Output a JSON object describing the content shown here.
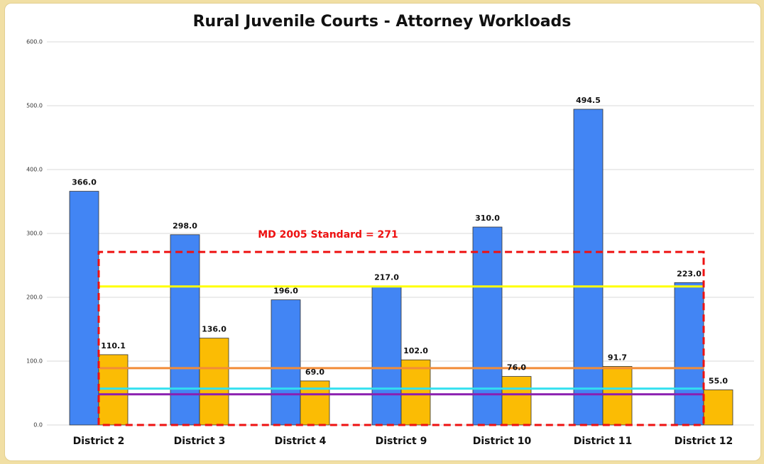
{
  "chart_data": {
    "type": "bar",
    "title": "Rural Juvenile Courts - Attorney Workloads",
    "categories": [
      "District 2",
      "District 3",
      "District 4",
      "District 9",
      "District 10",
      "District 11",
      "District 12"
    ],
    "series": [
      {
        "color": "#4285f4",
        "values": [
          366.0,
          298.0,
          196.0,
          217.0,
          310.0,
          494.5,
          223.0
        ],
        "value_labels": [
          "366.0",
          "298.0",
          "196.0",
          "217.0",
          "310.0",
          "494.5",
          "223.0"
        ]
      },
      {
        "color": "#fbbc04",
        "values": [
          110.1,
          136.0,
          69.0,
          102.0,
          76.0,
          91.7,
          55.0
        ],
        "value_labels": [
          "110.1",
          "136.0",
          "69.0",
          "102.0",
          "76.0",
          "91.7",
          "55.0"
        ]
      }
    ],
    "reference_lines": [
      {
        "value": 217,
        "color": "#ffff00"
      },
      {
        "value": 89,
        "color": "#f28c38"
      },
      {
        "value": 57,
        "color": "#33e0f0"
      },
      {
        "value": 48,
        "color": "#8a1fb0"
      }
    ],
    "standard": {
      "value": 271,
      "color": "#ee1111",
      "label": "MD 2005 Standard = 271"
    },
    "ylim": [
      0,
      600
    ],
    "yticks": [
      {
        "value": 0,
        "label": "0.0"
      },
      {
        "value": 100,
        "label": "100.0"
      },
      {
        "value": 200,
        "label": "200.0"
      },
      {
        "value": 300,
        "label": "300.0"
      },
      {
        "value": 400,
        "label": "400.0"
      },
      {
        "value": 500,
        "label": "500.0"
      },
      {
        "value": 600,
        "label": "600.0"
      }
    ],
    "grid": true
  }
}
